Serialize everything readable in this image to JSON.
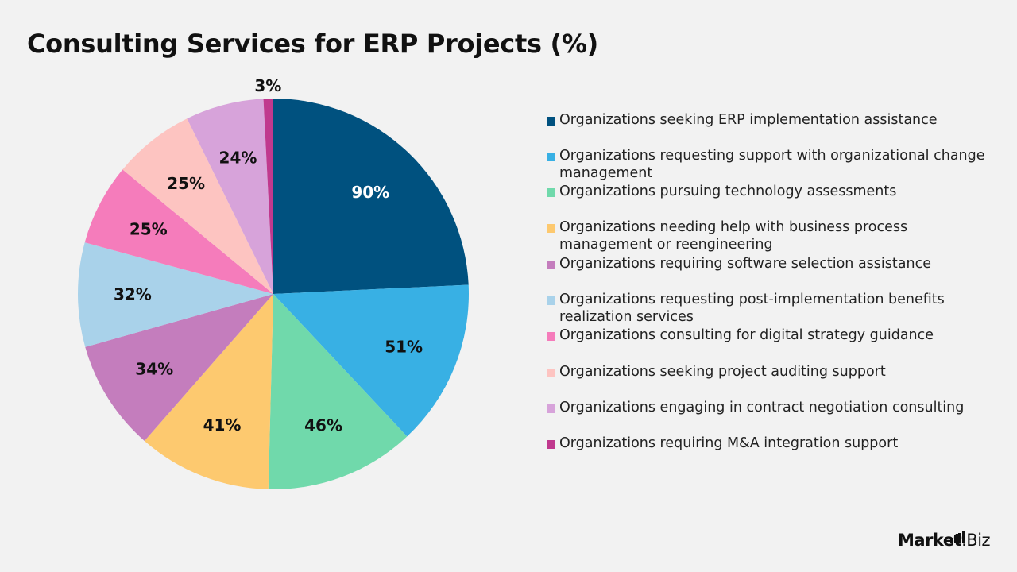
{
  "chart_data": {
    "type": "pie",
    "title": "Consulting Services for ERP Projects (%)",
    "categories": [
      "Organizations seeking ERP implementation assistance",
      "Organizations requesting support with organizational change management",
      "Organizations pursuing technology assessments",
      "Organizations needing help with business process management or reengineering",
      "Organizations requiring software selection assistance",
      "Organizations requesting post-implementation benefits realization services",
      "Organizations consulting for digital strategy guidance",
      "Organizations seeking project auditing support",
      "Organizations engaging in contract negotiation consulting",
      "Organizations requiring M&A integration support"
    ],
    "values": [
      90,
      51,
      46,
      41,
      34,
      32,
      25,
      25,
      24,
      3
    ],
    "labels": [
      "90%",
      "51%",
      "46%",
      "41%",
      "34%",
      "32%",
      "25%",
      "25%",
      "24%",
      "3%"
    ],
    "colors": [
      "#00517f",
      "#38b0e4",
      "#70d9ab",
      "#fdc96f",
      "#c47dbd",
      "#a9d2ea",
      "#f57cbb",
      "#fdc4c1",
      "#d7a3da",
      "#c0398e"
    ],
    "label_colors": [
      "#ffffff",
      "#111111",
      "#111111",
      "#111111",
      "#111111",
      "#111111",
      "#111111",
      "#111111",
      "#111111",
      "#111111"
    ],
    "legend_position": "right"
  },
  "branding": {
    "logo_text_bold": "Market",
    "logo_text_regular": ".Biz"
  }
}
